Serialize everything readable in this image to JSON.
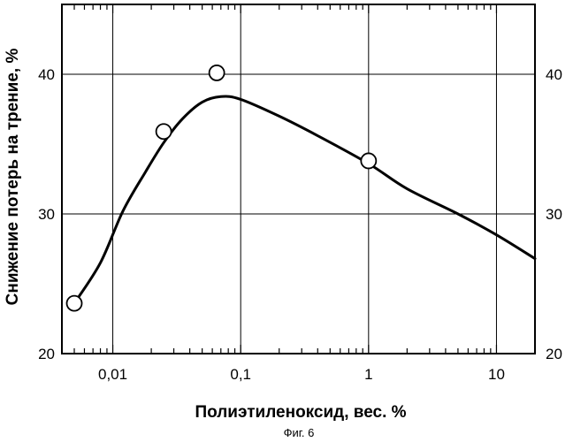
{
  "chart_data": {
    "type": "scatter",
    "xlabel": "Полиэтиленоксид, вес. %",
    "ylabel": "Снижение потерь на трение, %",
    "caption": "Фиг. 6",
    "x_scale": "log",
    "xlim": [
      0.004,
      20
    ],
    "ylim": [
      20,
      45
    ],
    "x_ticks": [
      {
        "value": 0.01,
        "label": "0,01"
      },
      {
        "value": 0.1,
        "label": "0,1"
      },
      {
        "value": 1,
        "label": "1"
      },
      {
        "value": 10,
        "label": "10"
      }
    ],
    "y_ticks": [
      {
        "value": 20,
        "label": "20"
      },
      {
        "value": 30,
        "label": "30"
      },
      {
        "value": 40,
        "label": "40"
      }
    ],
    "y_ticks_right": [
      {
        "value": 20,
        "label": "20"
      },
      {
        "value": 30,
        "label": "30"
      },
      {
        "value": 40,
        "label": "40"
      }
    ],
    "grid": true,
    "points": [
      {
        "x": 0.005,
        "y": 23.6
      },
      {
        "x": 0.025,
        "y": 35.9
      },
      {
        "x": 0.065,
        "y": 40.1
      },
      {
        "x": 1.0,
        "y": 33.8
      }
    ],
    "curve": [
      {
        "x": 0.005,
        "y": 23.6
      },
      {
        "x": 0.008,
        "y": 26.5
      },
      {
        "x": 0.012,
        "y": 30.2
      },
      {
        "x": 0.018,
        "y": 33.0
      },
      {
        "x": 0.025,
        "y": 35.1
      },
      {
        "x": 0.035,
        "y": 36.8
      },
      {
        "x": 0.05,
        "y": 38.0
      },
      {
        "x": 0.07,
        "y": 38.4
      },
      {
        "x": 0.1,
        "y": 38.2
      },
      {
        "x": 0.2,
        "y": 37.0
      },
      {
        "x": 0.4,
        "y": 35.6
      },
      {
        "x": 1.0,
        "y": 33.6
      },
      {
        "x": 2.0,
        "y": 31.8
      },
      {
        "x": 5.0,
        "y": 30.0
      },
      {
        "x": 10.0,
        "y": 28.5
      },
      {
        "x": 20.0,
        "y": 26.8
      }
    ]
  }
}
